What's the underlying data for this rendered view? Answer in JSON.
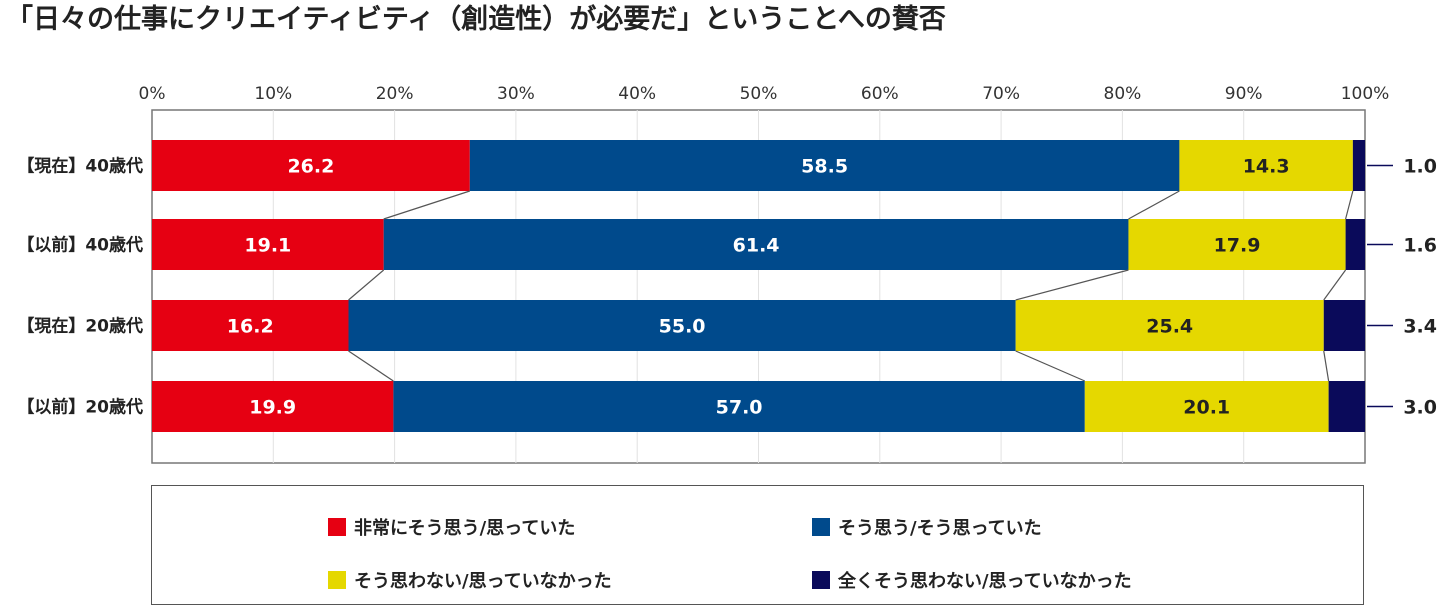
{
  "chart_data": {
    "type": "bar",
    "orientation": "horizontal",
    "stacked": true,
    "normalized": true,
    "title": "「日々の仕事にクリエイティビティ（創造性）が必要だ」ということへの賛否",
    "xlabel": "",
    "ylabel": "",
    "xlim": [
      0,
      100
    ],
    "xticks": [
      "0%",
      "10%",
      "20%",
      "30%",
      "40%",
      "50%",
      "60%",
      "70%",
      "80%",
      "90%",
      "100%"
    ],
    "grid": true,
    "legend_position": "bottom",
    "categories": [
      "【現在】40歳代",
      "【以前】40歳代",
      "【現在】20歳代",
      "【以前】20歳代"
    ],
    "series": [
      {
        "name": "非常にそう思う/思っていた",
        "color": "#e60012",
        "label_color": "#ffffff",
        "values": [
          26.2,
          19.1,
          16.2,
          19.9
        ]
      },
      {
        "name": "そう思う/そう思っていた",
        "color": "#004a8c",
        "label_color": "#ffffff",
        "values": [
          58.5,
          61.4,
          55.0,
          57.0
        ]
      },
      {
        "name": "そう思わない/思っていなかった",
        "color": "#e5d800",
        "label_color": "#222222",
        "values": [
          14.3,
          17.9,
          25.4,
          20.1
        ]
      },
      {
        "name": "全くそう思わない/思っていなかった",
        "color": "#0a0a5a",
        "label_color": "#222222",
        "values": [
          1.0,
          1.6,
          3.4,
          3.0
        ]
      }
    ],
    "data_labels": [
      [
        "26.2",
        "58.5",
        "14.3",
        "1.0"
      ],
      [
        "19.1",
        "61.4",
        "17.9",
        "1.6"
      ],
      [
        "16.2",
        "55.0",
        "25.4",
        "3.4"
      ],
      [
        "19.9",
        "57.0",
        "20.1",
        "3.0"
      ]
    ],
    "connector_lines": true,
    "outside_label_series": 3
  }
}
